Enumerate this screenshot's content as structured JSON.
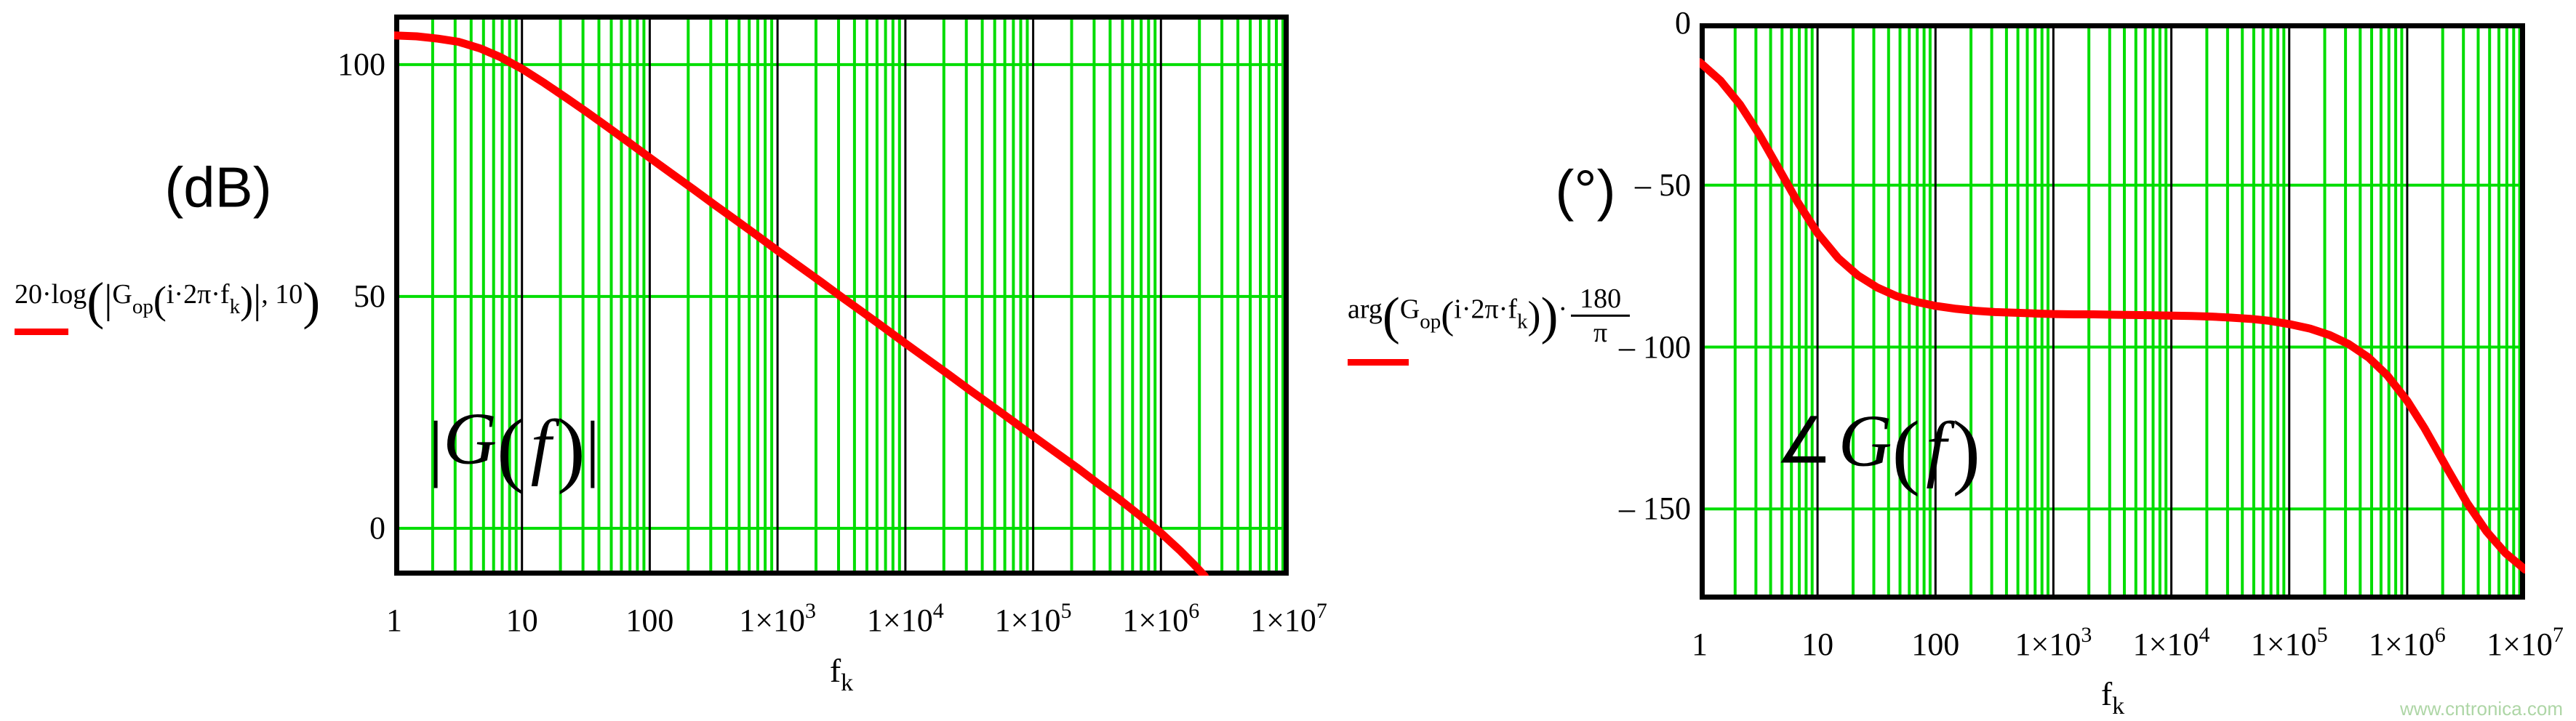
{
  "page": {
    "watermark": "www.cntronica.com"
  },
  "colors": {
    "curve": "#ff0000",
    "grid": "#00dd00",
    "frame": "#000000",
    "watermark": "#aed6a6",
    "background": "#ffffff"
  },
  "x_ticks": [
    {
      "t": "1",
      "s": ""
    },
    {
      "t": "10",
      "s": ""
    },
    {
      "t": "100",
      "s": ""
    },
    {
      "t": "1×10",
      "s": "3"
    },
    {
      "t": "1×10",
      "s": "4"
    },
    {
      "t": "1×10",
      "s": "5"
    },
    {
      "t": "1×10",
      "s": "6"
    },
    {
      "t": "1×10",
      "s": "7"
    }
  ],
  "xaxis": {
    "t": "f",
    "s": "k"
  },
  "left": {
    "unit": "(dB)",
    "expr": [
      "20·log",
      "(",
      "|",
      "G",
      "op",
      "(",
      "i·2π·f",
      "k",
      ")",
      "|",
      ", 10",
      ")"
    ],
    "plot_label": [
      "|",
      "G",
      "(",
      "f",
      ")",
      "|"
    ],
    "y_ticks": [
      "100",
      "50",
      "0"
    ]
  },
  "right": {
    "unit": "(°)",
    "expr": [
      "arg",
      "(",
      "G",
      "op",
      "(",
      "i·2π·f",
      "k",
      ")",
      ")",
      "·",
      "180",
      "π"
    ],
    "plot_label": [
      "∠",
      "G",
      "(",
      "f",
      ")"
    ],
    "y_ticks": [
      "0",
      "– 50",
      "– 100",
      "– 150"
    ]
  },
  "chart_data": [
    {
      "type": "line",
      "id": "magnitude",
      "title": "|G(f)| op-amp open-loop gain magnitude",
      "ylabel": "(dB)",
      "xlabel": "fk",
      "xscale": "log",
      "grid": true,
      "xlim": [
        1,
        10000000
      ],
      "ylim": [
        -10.2,
        110.8
      ],
      "ytick_values": [
        100,
        50,
        0
      ],
      "ytick_labels": [
        "100",
        "50",
        "0"
      ],
      "xtick_labels": [
        "1",
        "10",
        "100",
        "1×10^3",
        "1×10^4",
        "1×10^5",
        "1×10^6",
        "1×10^7"
      ],
      "series": [
        {
          "name": "20·log(|Gop(i·2π·fk)|,10)",
          "color": "#ff0000",
          "points": [
            [
              1,
              106.3
            ],
            [
              1.5,
              106.1
            ],
            [
              2.2,
              105.6
            ],
            [
              3.2,
              104.9
            ],
            [
              4.7,
              103.5
            ],
            [
              6.8,
              101.6
            ],
            [
              10,
              99.1
            ],
            [
              15,
              96.0
            ],
            [
              22,
              92.9
            ],
            [
              32,
              89.8
            ],
            [
              47,
              86.5
            ],
            [
              68,
              83.3
            ],
            [
              100,
              79.9
            ],
            [
              150,
              76.4
            ],
            [
              220,
              73.1
            ],
            [
              320,
              69.8
            ],
            [
              470,
              66.5
            ],
            [
              680,
              63.3
            ],
            [
              1000,
              59.9
            ],
            [
              1500,
              56.4
            ],
            [
              2200,
              53.1
            ],
            [
              3200,
              49.8
            ],
            [
              4700,
              46.5
            ],
            [
              6800,
              43.3
            ],
            [
              10000,
              39.9
            ],
            [
              15000,
              36.4
            ],
            [
              22000,
              33.1
            ],
            [
              32000,
              29.8
            ],
            [
              47000,
              26.5
            ],
            [
              68000,
              23.3
            ],
            [
              100000,
              19.9
            ],
            [
              150000,
              16.4
            ],
            [
              220000,
              13.1
            ],
            [
              320000,
              9.7
            ],
            [
              470000,
              6.3
            ],
            [
              680000,
              2.8
            ],
            [
              1000000,
              -1.0
            ],
            [
              1400000,
              -4.7
            ],
            [
              1800000,
              -7.7
            ],
            [
              2200000,
              -10.3
            ]
          ]
        }
      ]
    },
    {
      "type": "line",
      "id": "phase",
      "title": "∠G(f) op-amp open-loop phase",
      "ylabel": "(°)",
      "xlabel": "fk",
      "xscale": "log",
      "grid": true,
      "xlim": [
        1,
        10000000
      ],
      "ylim": [
        -178,
        0
      ],
      "ytick_values": [
        0,
        -50,
        -100,
        -150
      ],
      "ytick_labels": [
        "0",
        "– 50",
        "– 100",
        "– 150"
      ],
      "xtick_labels": [
        "1",
        "10",
        "100",
        "1×10^3",
        "1×10^4",
        "1×10^5",
        "1×10^6",
        "1×10^7"
      ],
      "series": [
        {
          "name": "arg(Gop(i·2π·fk))·180/π",
          "color": "#ff0000",
          "points": [
            [
              1,
              -12.0
            ],
            [
              1.5,
              -17.7
            ],
            [
              2.2,
              -25.1
            ],
            [
              3.2,
              -34.3
            ],
            [
              4.7,
              -45.0
            ],
            [
              6.8,
              -55.3
            ],
            [
              10,
              -64.8
            ],
            [
              15,
              -72.6
            ],
            [
              22,
              -77.9
            ],
            [
              32,
              -81.6
            ],
            [
              47,
              -84.3
            ],
            [
              68,
              -86.0
            ],
            [
              100,
              -87.3
            ],
            [
              150,
              -88.2
            ],
            [
              220,
              -88.8
            ],
            [
              320,
              -89.2
            ],
            [
              470,
              -89.4
            ],
            [
              680,
              -89.6
            ],
            [
              1000,
              -89.8
            ],
            [
              1500,
              -89.9
            ],
            [
              2200,
              -89.9
            ],
            [
              3200,
              -90.0
            ],
            [
              4700,
              -90.1
            ],
            [
              6800,
              -90.2
            ],
            [
              10000,
              -90.3
            ],
            [
              15000,
              -90.4
            ],
            [
              22000,
              -90.6
            ],
            [
              32000,
              -90.9
            ],
            [
              47000,
              -91.3
            ],
            [
              68000,
              -91.9
            ],
            [
              100000,
              -92.9
            ],
            [
              150000,
              -94.3
            ],
            [
              220000,
              -96.3
            ],
            [
              320000,
              -99.1
            ],
            [
              470000,
              -103.2
            ],
            [
              680000,
              -108.8
            ],
            [
              1000000,
              -116.6
            ],
            [
              1400000,
              -125.0
            ],
            [
              1800000,
              -132.0
            ],
            [
              2200000,
              -137.7
            ],
            [
              3200000,
              -148.0
            ],
            [
              4700000,
              -156.9
            ],
            [
              6800000,
              -163.6
            ],
            [
              10000000,
              -168.7
            ]
          ]
        }
      ]
    }
  ]
}
